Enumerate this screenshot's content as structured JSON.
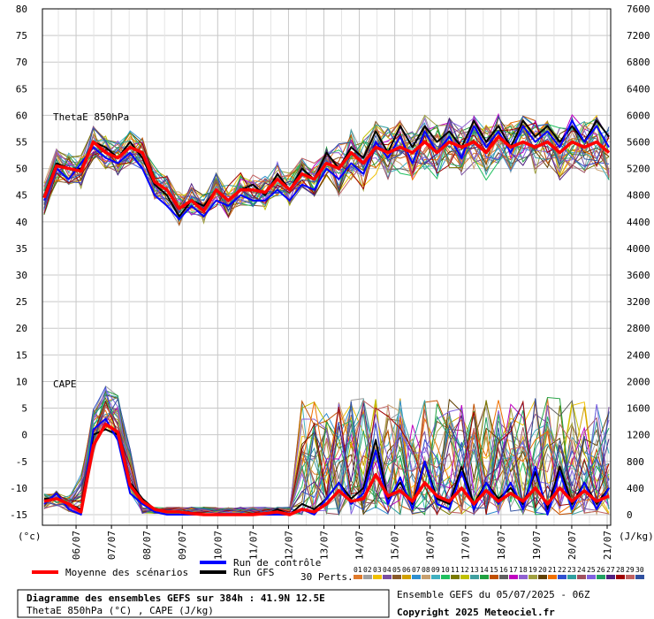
{
  "chart_data": {
    "type": "line",
    "title": "Diagramme des ensembles GEFS sur 384h : 41.9N 12.5E",
    "subtitle": "ThetaE 850hPa (°C) , CAPE (J/kg)",
    "run_info": "Ensemble GEFS du 05/07/2025 - 06Z",
    "copyright": "Copyright 2025 Meteociel.fr",
    "left_unit": "(°c)",
    "right_unit": "(J/kg)",
    "panel_labels": [
      "ThetaE 850hPa",
      "CAPE"
    ],
    "yticks_left": [
      80,
      75,
      70,
      65,
      60,
      55,
      50,
      45,
      40,
      35,
      30,
      25,
      20,
      15,
      10,
      5,
      0,
      -5,
      -10,
      -15
    ],
    "yticks_right": [
      7600,
      7200,
      6800,
      6400,
      6000,
      5600,
      5200,
      4800,
      4400,
      4000,
      3600,
      3200,
      2800,
      2400,
      2000,
      1600,
      1200,
      800,
      400,
      0
    ],
    "ylim": [
      -17,
      80
    ],
    "x_dates": [
      "06/07",
      "07/07",
      "08/07",
      "09/07",
      "10/07",
      "11/07",
      "12/07",
      "13/07",
      "14/07",
      "15/07",
      "16/07",
      "17/07",
      "18/07",
      "19/07",
      "20/07",
      "21/07"
    ],
    "legend": {
      "mean": "Moyenne des scénarios",
      "control": "Run de contrôle",
      "gfs": "Run GFS",
      "perts": "30 Perts."
    },
    "member_labels": [
      "01",
      "02",
      "03",
      "04",
      "05",
      "06",
      "07",
      "08",
      "09",
      "10",
      "11",
      "12",
      "13",
      "14",
      "15",
      "16",
      "17",
      "18",
      "19",
      "20",
      "21",
      "22",
      "23",
      "24",
      "25",
      "26",
      "27",
      "28",
      "29",
      "30"
    ],
    "member_colors": [
      "#e07a2a",
      "#a0a0a0",
      "#f0c000",
      "#7a4fa0",
      "#8a5a2a",
      "#d0a000",
      "#2f8fd0",
      "#c8a070",
      "#40b0c0",
      "#20c060",
      "#7a7a00",
      "#c0c000",
      "#40a0a0",
      "#20a040",
      "#c05000",
      "#606060",
      "#c000c0",
      "#9060d0",
      "#a0a040",
      "#604000",
      "#f07000",
      "#3050d0",
      "#30a0a0",
      "#a05060",
      "#8060e0",
      "#20a060",
      "#502080",
      "#a00000",
      "#c06060",
      "#3050a0"
    ],
    "series": [
      {
        "name": "Moyenne des scénarios",
        "color": "#ff0000",
        "thetae": [
          44.5,
          50.5,
          50,
          49.5,
          55,
          53,
          52,
          54,
          53,
          47.5,
          46,
          42.5,
          44,
          42,
          46,
          44,
          46,
          46,
          45.5,
          48,
          46,
          49,
          48,
          51,
          50,
          53,
          51,
          54,
          53,
          54,
          53,
          55,
          53,
          55,
          54,
          55,
          53,
          56,
          54,
          55,
          54,
          55,
          53,
          55,
          54,
          55,
          53
        ],
        "cape": [
          -12.5,
          -12,
          -13,
          -14.5,
          -2,
          2,
          0.5,
          -9.5,
          -12.5,
          -14,
          -14.5,
          -14.5,
          -14.8,
          -15,
          -15,
          -15,
          -15,
          -15,
          -14.8,
          -14.5,
          -15,
          -14,
          -14.5,
          -13,
          -10.5,
          -12.5,
          -12,
          -7.5,
          -11.5,
          -10.5,
          -12.5,
          -9,
          -11.5,
          -12.5,
          -10,
          -13,
          -10.5,
          -12.5,
          -11,
          -12.5,
          -10,
          -13,
          -10,
          -12.5,
          -10.5,
          -12.5,
          -11.5
        ]
      },
      {
        "name": "Run de contrôle",
        "color": "#0000ff",
        "thetae": [
          44,
          50,
          48,
          51,
          54,
          52,
          51,
          53,
          50,
          45,
          43,
          40.5,
          43,
          41,
          44,
          43,
          45,
          44,
          44,
          46,
          44,
          47,
          46,
          50,
          48,
          51,
          49,
          55,
          52,
          56,
          51,
          57,
          53,
          56,
          52,
          58,
          54,
          57,
          53,
          58,
          55,
          57,
          54,
          59,
          55,
          58,
          54
        ],
        "cape": [
          -13,
          -11,
          -14,
          -15,
          1,
          3,
          -1,
          -11,
          -13,
          -14.5,
          -15,
          -15,
          -15,
          -15,
          -15,
          -15,
          -15,
          -15,
          -15,
          -15,
          -15,
          -14,
          -15,
          -12,
          -9,
          -13,
          -11,
          -3,
          -13,
          -8,
          -14,
          -5,
          -13,
          -14,
          -7,
          -14,
          -9,
          -13,
          -9,
          -14,
          -6,
          -15,
          -7,
          -14,
          -9,
          -14,
          -10
        ]
      },
      {
        "name": "Run GFS",
        "color": "#000000",
        "thetae": [
          45,
          51,
          50,
          50,
          55,
          54,
          52,
          55,
          52,
          47,
          45,
          41,
          44,
          43,
          46,
          44,
          46,
          47,
          45,
          49,
          46,
          50,
          48,
          53,
          50,
          54,
          52,
          57,
          53,
          58,
          54,
          58,
          55,
          57,
          54,
          59,
          55,
          58,
          54,
          59,
          56,
          58,
          55,
          58,
          55,
          59,
          56
        ],
        "cape": [
          -12,
          -12,
          -13,
          -14,
          0,
          1,
          0,
          -9,
          -12,
          -14,
          -14.5,
          -14.5,
          -15,
          -15,
          -15,
          -15,
          -15,
          -15,
          -15,
          -14,
          -15,
          -13,
          -14,
          -12,
          -9,
          -12,
          -10,
          -1,
          -12,
          -9,
          -13,
          -5,
          -12,
          -13,
          -6,
          -13,
          -9,
          -12,
          -10,
          -13,
          -7,
          -14,
          -6,
          -13,
          -9,
          -13,
          -10
        ]
      }
    ]
  }
}
